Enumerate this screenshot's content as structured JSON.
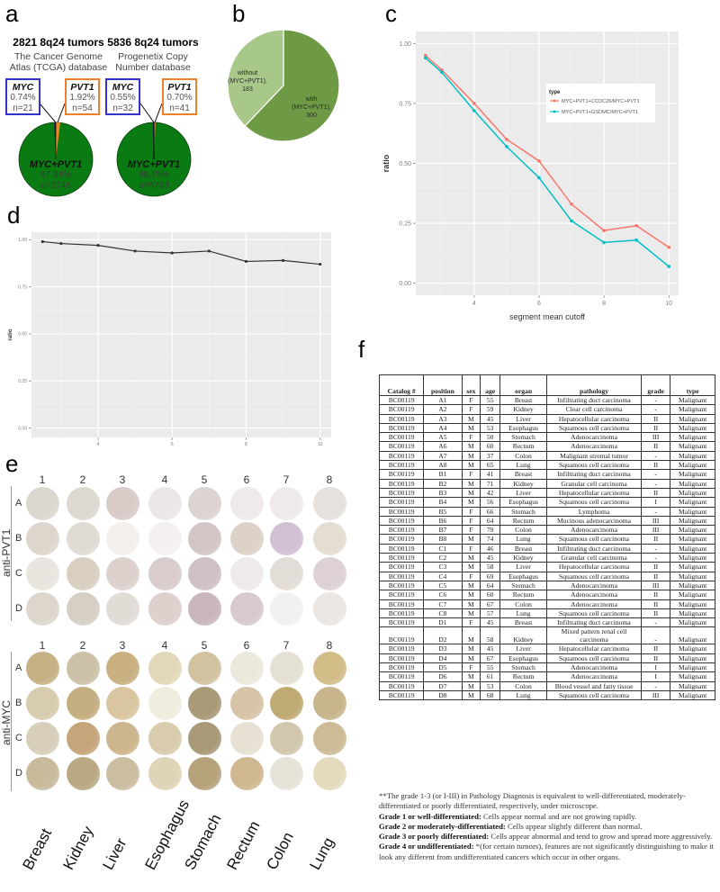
{
  "panels": {
    "a": "a",
    "b": "b",
    "c": "c",
    "d": "d",
    "e": "e",
    "f": "f"
  },
  "panel_a": {
    "left": {
      "title": "2821 8q24 tumors",
      "subtitle_line1": "The Cancer Genome",
      "subtitle_line2": "Atlas (TCGA) database",
      "myc": {
        "gene": "MYC",
        "pct": "0.74%",
        "n": "n=21"
      },
      "pvt1": {
        "gene": "PVT1",
        "pct": "1.92%",
        "n": "n=54"
      },
      "both": {
        "gene": "MYC+PVT1",
        "pct": "97.34%",
        "n": "n=2746"
      }
    },
    "right": {
      "title": "5836 8q24 tumors",
      "subtitle_line1": "Progenetix Copy",
      "subtitle_line2": "Number database",
      "myc": {
        "gene": "MYC",
        "pct": "0.55%",
        "n": "n=32"
      },
      "pvt1": {
        "gene": "PVT1",
        "pct": "0.70%",
        "n": "n=41"
      },
      "both": {
        "gene": "MYC+PVT1",
        "pct": "98.75%",
        "n": "n=5763"
      }
    },
    "colors": {
      "both": "#0a7a12",
      "myc": "#1c1c6e",
      "pvt1": "#f08a1e",
      "myc_box": "#3333cc",
      "pvt1_box": "#f07f2a"
    }
  },
  "panel_b": {
    "without": {
      "line1": "without",
      "line2": "(MYC+PVT1),",
      "line3": "183",
      "value": 183
    },
    "with": {
      "line1": "with",
      "line2": "(MYC+PVT1),",
      "line3": "300",
      "value": 300
    },
    "colors": {
      "without": "#a8c88a",
      "with": "#6e9a45"
    }
  },
  "chart_data": [
    {
      "id": "c",
      "type": "line",
      "title": "",
      "xlabel": "segment mean cutoff",
      "ylabel": "ratio",
      "xlim": [
        2.2,
        10.3
      ],
      "ylim": [
        -0.05,
        1.05
      ],
      "xticks": [
        4,
        6,
        8,
        10
      ],
      "yticks": [
        0.0,
        0.25,
        0.5,
        0.75,
        1.0
      ],
      "ytick_labels": [
        "0.00",
        "0.25",
        "0.50",
        "0.75",
        "1.00"
      ],
      "grid": true,
      "legend_title": "type",
      "legend_position": "top-right",
      "x": [
        2.5,
        3,
        4,
        5,
        6,
        7,
        8,
        9,
        10
      ],
      "series": [
        {
          "name": "MYC+PVT1+CCDC26/MYC+PVT1",
          "color": "#f8766d",
          "values": [
            0.95,
            0.89,
            0.75,
            0.6,
            0.51,
            0.33,
            0.22,
            0.24,
            0.15
          ]
        },
        {
          "name": "MYC+PVT1+GSDMC/MYC+PVT1",
          "color": "#00bfc4",
          "values": [
            0.94,
            0.88,
            0.72,
            0.57,
            0.44,
            0.26,
            0.17,
            0.18,
            0.07
          ]
        }
      ]
    },
    {
      "id": "d",
      "type": "line",
      "title": "",
      "xlabel": "segment mean cutoff",
      "ylabel": "ratio",
      "xlim": [
        2.2,
        10.3
      ],
      "ylim": [
        -0.05,
        1.04
      ],
      "xticks": [
        4,
        6,
        8,
        10
      ],
      "yticks": [
        0.0,
        0.25,
        0.5,
        0.75,
        1.0
      ],
      "ytick_labels": [
        "0.00",
        "0.25",
        "0.50",
        "0.75",
        "1.00"
      ],
      "grid": true,
      "x": [
        2.5,
        3,
        4,
        5,
        6,
        7,
        8,
        9,
        10
      ],
      "series": [
        {
          "name": "ratio",
          "color": "#333333",
          "values": [
            0.99,
            0.98,
            0.97,
            0.94,
            0.93,
            0.94,
            0.885,
            0.89,
            0.87
          ]
        }
      ]
    }
  ],
  "panel_e": {
    "columns": [
      "1",
      "2",
      "3",
      "4",
      "5",
      "6",
      "7",
      "8"
    ],
    "rows": [
      "A",
      "B",
      "C",
      "D"
    ],
    "pvt1_label": "anti-PVT1",
    "myc_label": "anti-MYC",
    "organs": [
      "Breast",
      "Kidney",
      "Liver",
      "Esophagus",
      "Stomach",
      "Rectum",
      "Colon",
      "Lung"
    ]
  },
  "panel_f": {
    "headers": [
      "Catalog #",
      "position",
      "sex",
      "age",
      "organ",
      "pathology",
      "grade",
      "type"
    ],
    "rows": [
      [
        "BC00119",
        "A1",
        "F",
        "55",
        "Breast",
        "Infiltrating duct carcinoma",
        "-",
        "Malignant"
      ],
      [
        "BC00119",
        "A2",
        "F",
        "59",
        "Kidney",
        "Clear cell carcinoma",
        "-",
        "Malignant"
      ],
      [
        "BC00119",
        "A3",
        "M",
        "45",
        "Liver",
        "Hepatocellular carcinoma",
        "II",
        "Malignant"
      ],
      [
        "BC00119",
        "A4",
        "M",
        "53",
        "Esophagus",
        "Squamous cell carcinoma",
        "II",
        "Malignant"
      ],
      [
        "BC00119",
        "A5",
        "F",
        "50",
        "Stomach",
        "Adenocarcinoma",
        "III",
        "Malignant"
      ],
      [
        "BC00119",
        "A6",
        "M",
        "60",
        "Rectum",
        "Adenocarcinoma",
        "II",
        "Malignant"
      ],
      [
        "BC00119",
        "A7",
        "M",
        "37",
        "Colon",
        "Malignant stromal tumor",
        "-",
        "Malignant"
      ],
      [
        "BC00119",
        "A8",
        "M",
        "65",
        "Lung",
        "Squamous cell carcinoma",
        "II",
        "Malignant"
      ],
      [
        "BC00119",
        "B1",
        "F",
        "41",
        "Breast",
        "Infiltrating duct carcinoma",
        "-",
        "Malignant"
      ],
      [
        "BC00119",
        "B2",
        "M",
        "71",
        "Kidney",
        "Granular cell carcinoma",
        "-",
        "Malignant"
      ],
      [
        "BC00119",
        "B3",
        "M",
        "42",
        "Liver",
        "Hepatocellular carcinoma",
        "II",
        "Malignant"
      ],
      [
        "BC00119",
        "B4",
        "M",
        "56",
        "Esophagus",
        "Squamous cell carcinoma",
        "I",
        "Malignant"
      ],
      [
        "BC00119",
        "B5",
        "F",
        "66",
        "Stomach",
        "Lymphoma",
        "-",
        "Malignant"
      ],
      [
        "BC00119",
        "B6",
        "F",
        "64",
        "Rectum",
        "Mucinous adenocarcinoma",
        "III",
        "Malignant"
      ],
      [
        "BC00119",
        "B7",
        "F",
        "79",
        "Colon",
        "Adenocarcinoma",
        "III",
        "Malignant"
      ],
      [
        "BC00119",
        "B8",
        "M",
        "74",
        "Lung",
        "Squamous cell carcinoma",
        "II",
        "Malignant"
      ],
      [
        "BC00119",
        "C1",
        "F",
        "46",
        "Breast",
        "Infiltrating duct carcinoma",
        "-",
        "Malignant"
      ],
      [
        "BC00119",
        "C2",
        "M",
        "45",
        "Kidney",
        "Granular cell carcinoma",
        "-",
        "Malignant"
      ],
      [
        "BC00119",
        "C3",
        "M",
        "58",
        "Liver",
        "Hepatocellular carcinoma",
        "II",
        "Malignant"
      ],
      [
        "BC00119",
        "C4",
        "F",
        "69",
        "Esophagus",
        "Squamous cell carcinoma",
        "II",
        "Malignant"
      ],
      [
        "BC00119",
        "C5",
        "M",
        "64",
        "Stomach",
        "Adenocarcinoma",
        "III",
        "Malignant"
      ],
      [
        "BC00119",
        "C6",
        "M",
        "60",
        "Rectum",
        "Adenocarcinoma",
        "II",
        "Malignant"
      ],
      [
        "BC00119",
        "C7",
        "M",
        "67",
        "Colon",
        "Adenocarcinoma",
        "II",
        "Malignant"
      ],
      [
        "BC00119",
        "C8",
        "M",
        "57",
        "Lung",
        "Squamous cell carcinoma",
        "II",
        "Malignant"
      ],
      [
        "BC00119",
        "D1",
        "F",
        "45",
        "Breast",
        "Infiltrating duct carcinoma",
        "-",
        "Malignant"
      ],
      [
        "BC00119",
        "D2",
        "M",
        "58",
        "Kidney",
        "Mixed pattern renal cell carcinoma",
        "-",
        "Malignant"
      ],
      [
        "BC00119",
        "D3",
        "M",
        "45",
        "Liver",
        "Hepatocellular carcinoma",
        "II",
        "Malignant"
      ],
      [
        "BC00119",
        "D4",
        "M",
        "67",
        "Esophagus",
        "Squamous cell carcinoma",
        "II",
        "Malignant"
      ],
      [
        "BC00119",
        "D5",
        "F",
        "55",
        "Stomach",
        "Adenocarcinoma",
        "I",
        "Malignant"
      ],
      [
        "BC00119",
        "D6",
        "M",
        "61",
        "Rectum",
        "Adenocarcinoma",
        "I",
        "Malignant"
      ],
      [
        "BC00119",
        "D7",
        "M",
        "53",
        "Colon",
        "Blood vessel and fatty tissue",
        "-",
        "Malignant"
      ],
      [
        "BC00119",
        "D8",
        "M",
        "68",
        "Lung",
        "Squamous cell carcinoma",
        "III",
        "Malignant"
      ]
    ],
    "notes": {
      "intro": "**The grade 1-3 (or I-III) in Pathology Diagnosis is equivalent to well-differentiated, moderately-differentiated or poorly differentiated, respectively, under microscope.",
      "g1_label": "Grade 1 or well-differentiated:",
      "g1_text": " Cells appear normal and are not growing rapidly.",
      "g2_label": "Grade 2 or moderately-differentiated:",
      "g2_text": " Cells appear slightly different than normal.",
      "g3_label": "Grade 3 or poorly differentiated:",
      "g3_text": " Cells appear abnormal and tend to grow and spread more aggressively.",
      "g4_label": "Grade 4 or undifferentiated:",
      "g4_text": " *(for certain tumors), features are not significantly distinguishing to make it look any different from undifferentiated cancers which occur in other organs."
    }
  }
}
